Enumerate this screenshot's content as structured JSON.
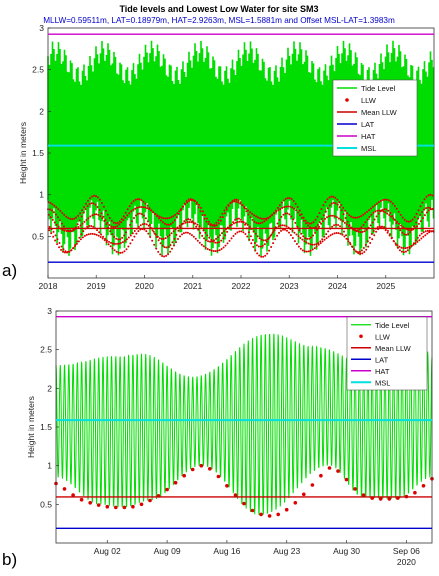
{
  "figure": {
    "title": "Tide levels and Lowest Low Water for site SM3",
    "subtitle": "MLLW=0.59511m,  LAT=0.18979m,   HAT=2.9263m,  MSL=1.5881m  and  Offset MSL-LAT=1.3983m",
    "panel_letters": [
      "a)",
      "b)"
    ]
  },
  "colors": {
    "tide": "#00dd00",
    "llw": "#dd0000",
    "mean_llw": "#cc0000",
    "lat": "#0000cc",
    "hat": "#cc00cc",
    "msl": "#00e0e0",
    "subtitle": "#0000cc"
  },
  "chart_data": [
    {
      "type": "line",
      "panel": "a)",
      "title": "Tide levels and Lowest Low Water for site SM3",
      "xlabel": "",
      "ylabel": "Height in meters",
      "xlim": [
        "2018-01-01",
        "2026-01-01"
      ],
      "x_ticks": [
        "2018",
        "2019",
        "2020",
        "2021",
        "2022",
        "2023",
        "2024",
        "2025"
      ],
      "ylim": [
        0,
        3
      ],
      "y_ticks": [
        0.5,
        1,
        1.5,
        2,
        2.5,
        3
      ],
      "grid": false,
      "legend_position": "right",
      "reference_lines": [
        {
          "name": "Mean LLW",
          "value": 0.59511
        },
        {
          "name": "LAT",
          "value": 0.18979
        },
        {
          "name": "HAT",
          "value": 2.9263
        },
        {
          "name": "MSL",
          "value": 1.5881
        }
      ],
      "series": [
        {
          "name": "Tide Level",
          "style": "line",
          "range": [
            0.2,
            2.9
          ],
          "high_tide_envelope": [
            2.3,
            2.85
          ],
          "low_tide_envelope": [
            0.25,
            0.95
          ]
        },
        {
          "name": "LLW",
          "style": "markers",
          "range": [
            0.25,
            1.0
          ]
        }
      ],
      "legend": [
        "Tide Level",
        "LLW",
        "Mean LLW",
        "LAT",
        "HAT",
        "MSL"
      ]
    },
    {
      "type": "line",
      "panel": "b)",
      "xlabel": "",
      "ylabel": "Height in meters",
      "xlim": [
        "2020-07-27",
        "2020-09-09"
      ],
      "x_ticks": [
        "Aug 02",
        "Aug 09",
        "Aug 16",
        "Aug 23",
        "Aug 30",
        "Sep 06"
      ],
      "x_secondary_label": "2020",
      "ylim": [
        0,
        3
      ],
      "y_ticks": [
        0.5,
        1,
        1.5,
        2,
        2.5,
        3
      ],
      "grid": false,
      "legend_position": "top-right",
      "reference_lines": [
        {
          "name": "Mean LLW",
          "value": 0.59511
        },
        {
          "name": "LAT",
          "value": 0.18979
        },
        {
          "name": "HAT",
          "value": 2.9263
        },
        {
          "name": "MSL",
          "value": 1.5881
        }
      ],
      "tide_cycles_per_day": 2,
      "tide_high_peaks": [
        {
          "x": "2020-07-27",
          "y": 2.3
        },
        {
          "x": "2020-08-03",
          "y": 2.42
        },
        {
          "x": "2020-08-06",
          "y": 2.45
        },
        {
          "x": "2020-08-12",
          "y": 2.15
        },
        {
          "x": "2020-08-21",
          "y": 2.72
        },
        {
          "x": "2020-08-26",
          "y": 2.55
        },
        {
          "x": "2020-09-02",
          "y": 2.3
        },
        {
          "x": "2020-09-08",
          "y": 2.55
        },
        {
          "x": "2020-09-09",
          "y": 2.4
        }
      ],
      "tide_low_troughs": [
        {
          "x": "2020-07-27",
          "y": 0.85
        },
        {
          "x": "2020-08-01",
          "y": 0.5
        },
        {
          "x": "2020-08-04",
          "y": 0.45
        },
        {
          "x": "2020-08-07",
          "y": 0.55
        },
        {
          "x": "2020-08-13",
          "y": 1.0
        },
        {
          "x": "2020-08-20",
          "y": 0.35
        },
        {
          "x": "2020-08-28",
          "y": 1.0
        },
        {
          "x": "2020-09-01",
          "y": 0.58
        },
        {
          "x": "2020-09-05",
          "y": 0.57
        },
        {
          "x": "2020-09-09",
          "y": 0.85
        }
      ],
      "llw_points": [
        {
          "x": "2020-07-27",
          "y": 0.77
        },
        {
          "x": "2020-07-28",
          "y": 0.7
        },
        {
          "x": "2020-07-29",
          "y": 0.62
        },
        {
          "x": "2020-07-30",
          "y": 0.56
        },
        {
          "x": "2020-07-31",
          "y": 0.52
        },
        {
          "x": "2020-08-01",
          "y": 0.49
        },
        {
          "x": "2020-08-02",
          "y": 0.47
        },
        {
          "x": "2020-08-03",
          "y": 0.46
        },
        {
          "x": "2020-08-04",
          "y": 0.46
        },
        {
          "x": "2020-08-05",
          "y": 0.47
        },
        {
          "x": "2020-08-06",
          "y": 0.5
        },
        {
          "x": "2020-08-07",
          "y": 0.55
        },
        {
          "x": "2020-08-08",
          "y": 0.61
        },
        {
          "x": "2020-08-09",
          "y": 0.69
        },
        {
          "x": "2020-08-10",
          "y": 0.78
        },
        {
          "x": "2020-08-11",
          "y": 0.87
        },
        {
          "x": "2020-08-12",
          "y": 0.95
        },
        {
          "x": "2020-08-13",
          "y": 1.0
        },
        {
          "x": "2020-08-14",
          "y": 0.96
        },
        {
          "x": "2020-08-15",
          "y": 0.86
        },
        {
          "x": "2020-08-16",
          "y": 0.74
        },
        {
          "x": "2020-08-17",
          "y": 0.62
        },
        {
          "x": "2020-08-18",
          "y": 0.51
        },
        {
          "x": "2020-08-19",
          "y": 0.42
        },
        {
          "x": "2020-08-20",
          "y": 0.37
        },
        {
          "x": "2020-08-21",
          "y": 0.35
        },
        {
          "x": "2020-08-22",
          "y": 0.37
        },
        {
          "x": "2020-08-23",
          "y": 0.43
        },
        {
          "x": "2020-08-24",
          "y": 0.52
        },
        {
          "x": "2020-08-25",
          "y": 0.63
        },
        {
          "x": "2020-08-26",
          "y": 0.75
        },
        {
          "x": "2020-08-27",
          "y": 0.87
        },
        {
          "x": "2020-08-28",
          "y": 0.97
        },
        {
          "x": "2020-08-29",
          "y": 0.93
        },
        {
          "x": "2020-08-30",
          "y": 0.82
        },
        {
          "x": "2020-08-31",
          "y": 0.7
        },
        {
          "x": "2020-09-01",
          "y": 0.62
        },
        {
          "x": "2020-09-02",
          "y": 0.58
        },
        {
          "x": "2020-09-03",
          "y": 0.57
        },
        {
          "x": "2020-09-04",
          "y": 0.57
        },
        {
          "x": "2020-09-05",
          "y": 0.58
        },
        {
          "x": "2020-09-06",
          "y": 0.6
        },
        {
          "x": "2020-09-07",
          "y": 0.65
        },
        {
          "x": "2020-09-08",
          "y": 0.74
        },
        {
          "x": "2020-09-09",
          "y": 0.83
        }
      ],
      "legend": [
        "Tide Level",
        "LLW",
        "Mean LLW",
        "LAT",
        "HAT",
        "MSL"
      ]
    }
  ]
}
